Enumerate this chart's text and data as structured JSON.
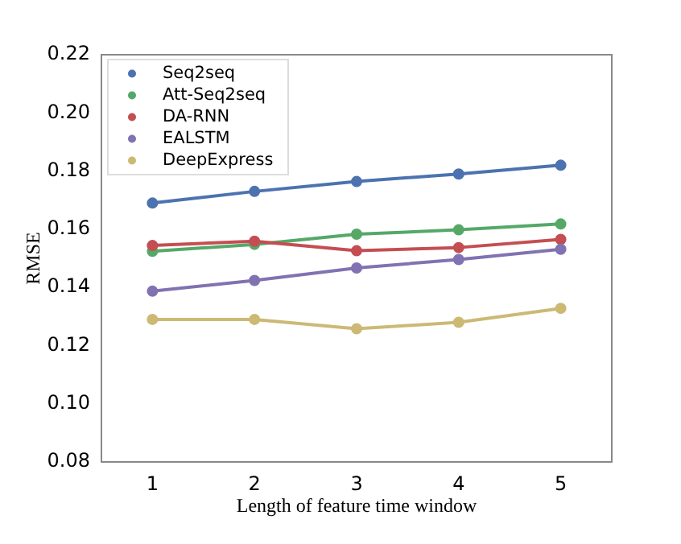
{
  "chart_data": {
    "type": "line",
    "xlabel": "Length of feature time window",
    "ylabel": "RMSE",
    "x": [
      1,
      2,
      3,
      4,
      5
    ],
    "xlim": [
      0.5,
      5.5
    ],
    "xticks": [
      1,
      2,
      3,
      4,
      5
    ],
    "ylim": [
      0.08,
      0.22
    ],
    "yticks": [
      {
        "value": 0.08,
        "label": "0.08"
      },
      {
        "value": 0.1,
        "label": "0.10"
      },
      {
        "value": 0.12,
        "label": "0.12"
      },
      {
        "value": 0.14,
        "label": "0.14"
      },
      {
        "value": 0.16,
        "label": "0.16"
      },
      {
        "value": 0.18,
        "label": "0.18"
      },
      {
        "value": 0.2,
        "label": "0.20"
      },
      {
        "value": 0.22,
        "label": "0.22"
      }
    ],
    "series": [
      {
        "name": "Seq2seq",
        "color": "#4c72b0",
        "values": [
          0.169,
          0.173,
          0.1764,
          0.179,
          0.182
        ]
      },
      {
        "name": "Att-Seq2seq",
        "color": "#55a868",
        "values": [
          0.1524,
          0.1548,
          0.1583,
          0.1598,
          0.1618
        ]
      },
      {
        "name": "DA-RNN",
        "color": "#c44e52",
        "values": [
          0.1544,
          0.1559,
          0.1526,
          0.1537,
          0.1565
        ]
      },
      {
        "name": "EALSTM",
        "color": "#8172b2",
        "values": [
          0.1387,
          0.1424,
          0.1467,
          0.1496,
          0.1531
        ]
      },
      {
        "name": "DeepExpress",
        "color": "#ccb974",
        "values": [
          0.129,
          0.129,
          0.1258,
          0.128,
          0.1328
        ]
      }
    ],
    "legend": "top left",
    "marker": "circle",
    "line_style": "solid",
    "grid": false
  }
}
